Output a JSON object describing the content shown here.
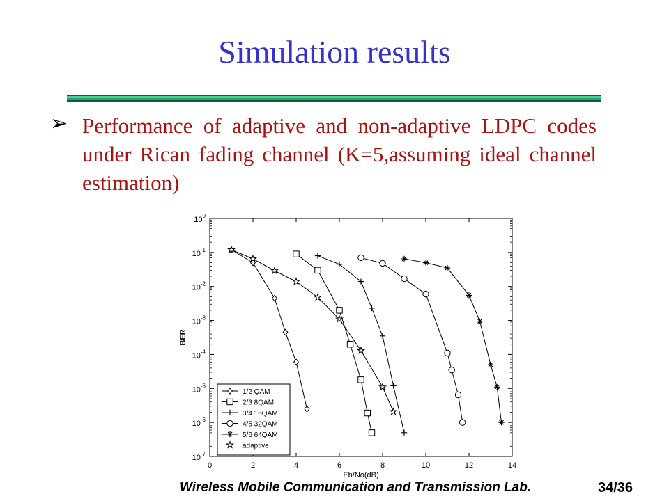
{
  "slide": {
    "title": "Simulation results",
    "bullet": "Performance of adaptive and non-adaptive LDPC codes under Rican fading channel (K=5,assuming ideal channel estimation)",
    "bullet_icon": "arrow-bullet-icon",
    "title_color": "#3333cc",
    "text_color": "#aa1111",
    "footer": "Wireless Mobile Communication and Transmission Lab.",
    "page": "34/36"
  },
  "chart_data": {
    "type": "line",
    "title": "",
    "xlabel": "Eb/No(dB)",
    "ylabel": "BER",
    "xlim": [
      0,
      14
    ],
    "ylim": [
      1e-07,
      1
    ],
    "yscale": "log",
    "x_ticks": [
      "0",
      "2",
      "4",
      "6",
      "8",
      "10",
      "12",
      "14"
    ],
    "y_ticks": [
      {
        "base": "10",
        "exp": "0"
      },
      {
        "base": "10",
        "exp": "-1"
      },
      {
        "base": "10",
        "exp": "-2"
      },
      {
        "base": "10",
        "exp": "-3"
      },
      {
        "base": "10",
        "exp": "-4"
      },
      {
        "base": "10",
        "exp": "-5"
      },
      {
        "base": "10",
        "exp": "-6"
      },
      {
        "base": "10",
        "exp": "-7"
      }
    ],
    "grid": false,
    "legend_position": "bottom-left",
    "series": [
      {
        "name": "1/2 QAM",
        "marker": "diamond",
        "x": [
          1,
          2,
          3,
          3.5,
          4,
          4.5
        ],
        "y": [
          0.12,
          0.05,
          0.0045,
          0.00045,
          6e-05,
          2.5e-06
        ]
      },
      {
        "name": "2/3 8QAM",
        "marker": "square",
        "x": [
          4,
          5,
          6,
          6.5,
          7,
          7.3,
          7.5
        ],
        "y": [
          0.09,
          0.03,
          0.002,
          0.0002,
          1.8e-05,
          1.9e-06,
          5e-07
        ]
      },
      {
        "name": "3/4 16QAM",
        "marker": "plus",
        "x": [
          5,
          6,
          7,
          7.5,
          8,
          8.5,
          9
        ],
        "y": [
          0.08,
          0.045,
          0.014,
          0.0023,
          0.00035,
          1.2e-05,
          5e-07
        ]
      },
      {
        "name": "4/5 32QAM",
        "marker": "circle",
        "x": [
          7,
          8,
          9,
          10,
          11,
          11.2,
          11.5,
          11.7
        ],
        "y": [
          0.07,
          0.048,
          0.017,
          0.006,
          0.00011,
          3.5e-05,
          6.5e-06,
          1e-06
        ]
      },
      {
        "name": "5/6 64QAM",
        "marker": "asterisk",
        "x": [
          9,
          10,
          11,
          12,
          12.5,
          13,
          13.3,
          13.5
        ],
        "y": [
          0.065,
          0.05,
          0.035,
          0.0055,
          0.00095,
          5e-05,
          1.1e-05,
          1e-06
        ]
      },
      {
        "name": "adaptive",
        "marker": "star",
        "x": [
          1,
          2,
          3,
          4,
          5,
          6,
          7,
          8,
          8.5
        ],
        "y": [
          0.12,
          0.065,
          0.029,
          0.014,
          0.0048,
          0.0011,
          0.00013,
          1.1e-05,
          2.1e-06
        ]
      }
    ]
  }
}
